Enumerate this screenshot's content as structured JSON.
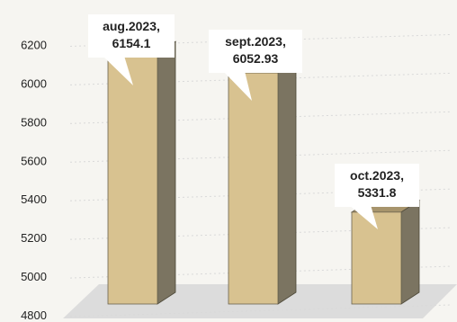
{
  "chart_data": {
    "type": "bar",
    "style": "3d-column",
    "categories": [
      "aug.2023",
      "sept.2023",
      "oct.2023"
    ],
    "values": [
      6154.1,
      6052.93,
      5331.8
    ],
    "data_labels": [
      [
        "aug.2023,",
        "6154.1"
      ],
      [
        "sept.2023,",
        "6052.93"
      ],
      [
        "oct.2023,",
        "5331.8"
      ]
    ],
    "y_ticks": [
      "4800",
      "5000",
      "5200",
      "5400",
      "5600",
      "5800",
      "6000",
      "6200"
    ],
    "ylim": [
      4800,
      6300
    ],
    "title": "",
    "xlabel": "",
    "ylabel": "",
    "grid": true,
    "legend": "none",
    "colors": {
      "bar_front": "#d8c290",
      "bar_side": "#7b7461",
      "bar_top": "#a7946c",
      "floor": "#dcdcdc",
      "callout_bg": "#ffffff"
    }
  }
}
